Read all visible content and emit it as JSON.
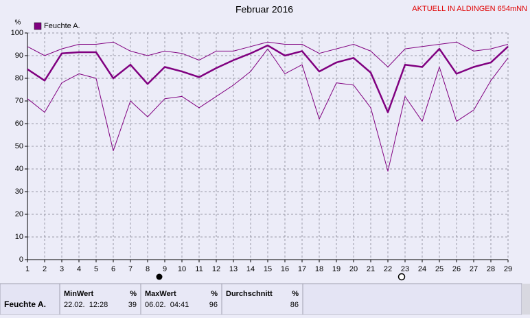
{
  "chart_data": {
    "type": "line",
    "title": "Februar 2016",
    "subtitle": "AKTUELL IN ALDINGEN 654mNN",
    "y_label": "%",
    "legend": "Feuchte A.",
    "x": [
      1,
      2,
      3,
      4,
      5,
      6,
      7,
      8,
      9,
      10,
      11,
      12,
      13,
      14,
      15,
      16,
      17,
      18,
      19,
      20,
      21,
      22,
      23,
      24,
      25,
      26,
      27,
      28,
      29
    ],
    "xlim": [
      1,
      29
    ],
    "xticks": [
      1,
      2,
      3,
      4,
      5,
      6,
      7,
      8,
      9,
      10,
      11,
      12,
      13,
      14,
      15,
      16,
      17,
      18,
      19,
      20,
      21,
      22,
      23,
      24,
      25,
      26,
      27,
      28,
      29
    ],
    "ylim": [
      0,
      100
    ],
    "yticks": [
      0,
      10,
      20,
      30,
      40,
      50,
      60,
      70,
      80,
      90,
      100
    ],
    "grid": true,
    "series": [
      {
        "color": "#800080",
        "width": 1,
        "values": [
          94,
          90,
          93,
          95,
          95,
          96,
          92,
          90,
          92,
          91,
          88,
          92,
          92,
          94,
          96,
          95,
          95,
          91,
          93,
          95,
          92,
          85,
          93,
          94,
          95,
          96,
          92,
          93,
          95
        ]
      },
      {
        "color": "#800080",
        "width": 2.5,
        "values": [
          84,
          79,
          91,
          91.5,
          91.5,
          80,
          86,
          77.5,
          85,
          83,
          80.5,
          84.5,
          88,
          91,
          94.5,
          90,
          92,
          83,
          87,
          89,
          82.5,
          65,
          86,
          85,
          93,
          82,
          85,
          87,
          94
        ]
      },
      {
        "color": "#800080",
        "width": 1,
        "values": [
          71,
          65,
          78,
          82,
          80,
          48,
          70,
          63,
          71,
          72,
          67,
          72,
          77,
          83,
          93,
          82,
          86,
          62,
          78,
          77,
          67,
          39,
          72,
          61,
          85,
          61,
          66,
          79,
          89
        ]
      }
    ]
  },
  "table": {
    "row_label": "Feuchte A.",
    "columns": [
      {
        "title": "MinWert",
        "unit": "%",
        "time": "22.02.  12:28",
        "value": 39
      },
      {
        "title": "MaxWert",
        "unit": "%",
        "time": "06.02.  04:41",
        "value": 96
      },
      {
        "title": "Durchschnitt",
        "unit": "%",
        "value": 86
      }
    ]
  }
}
